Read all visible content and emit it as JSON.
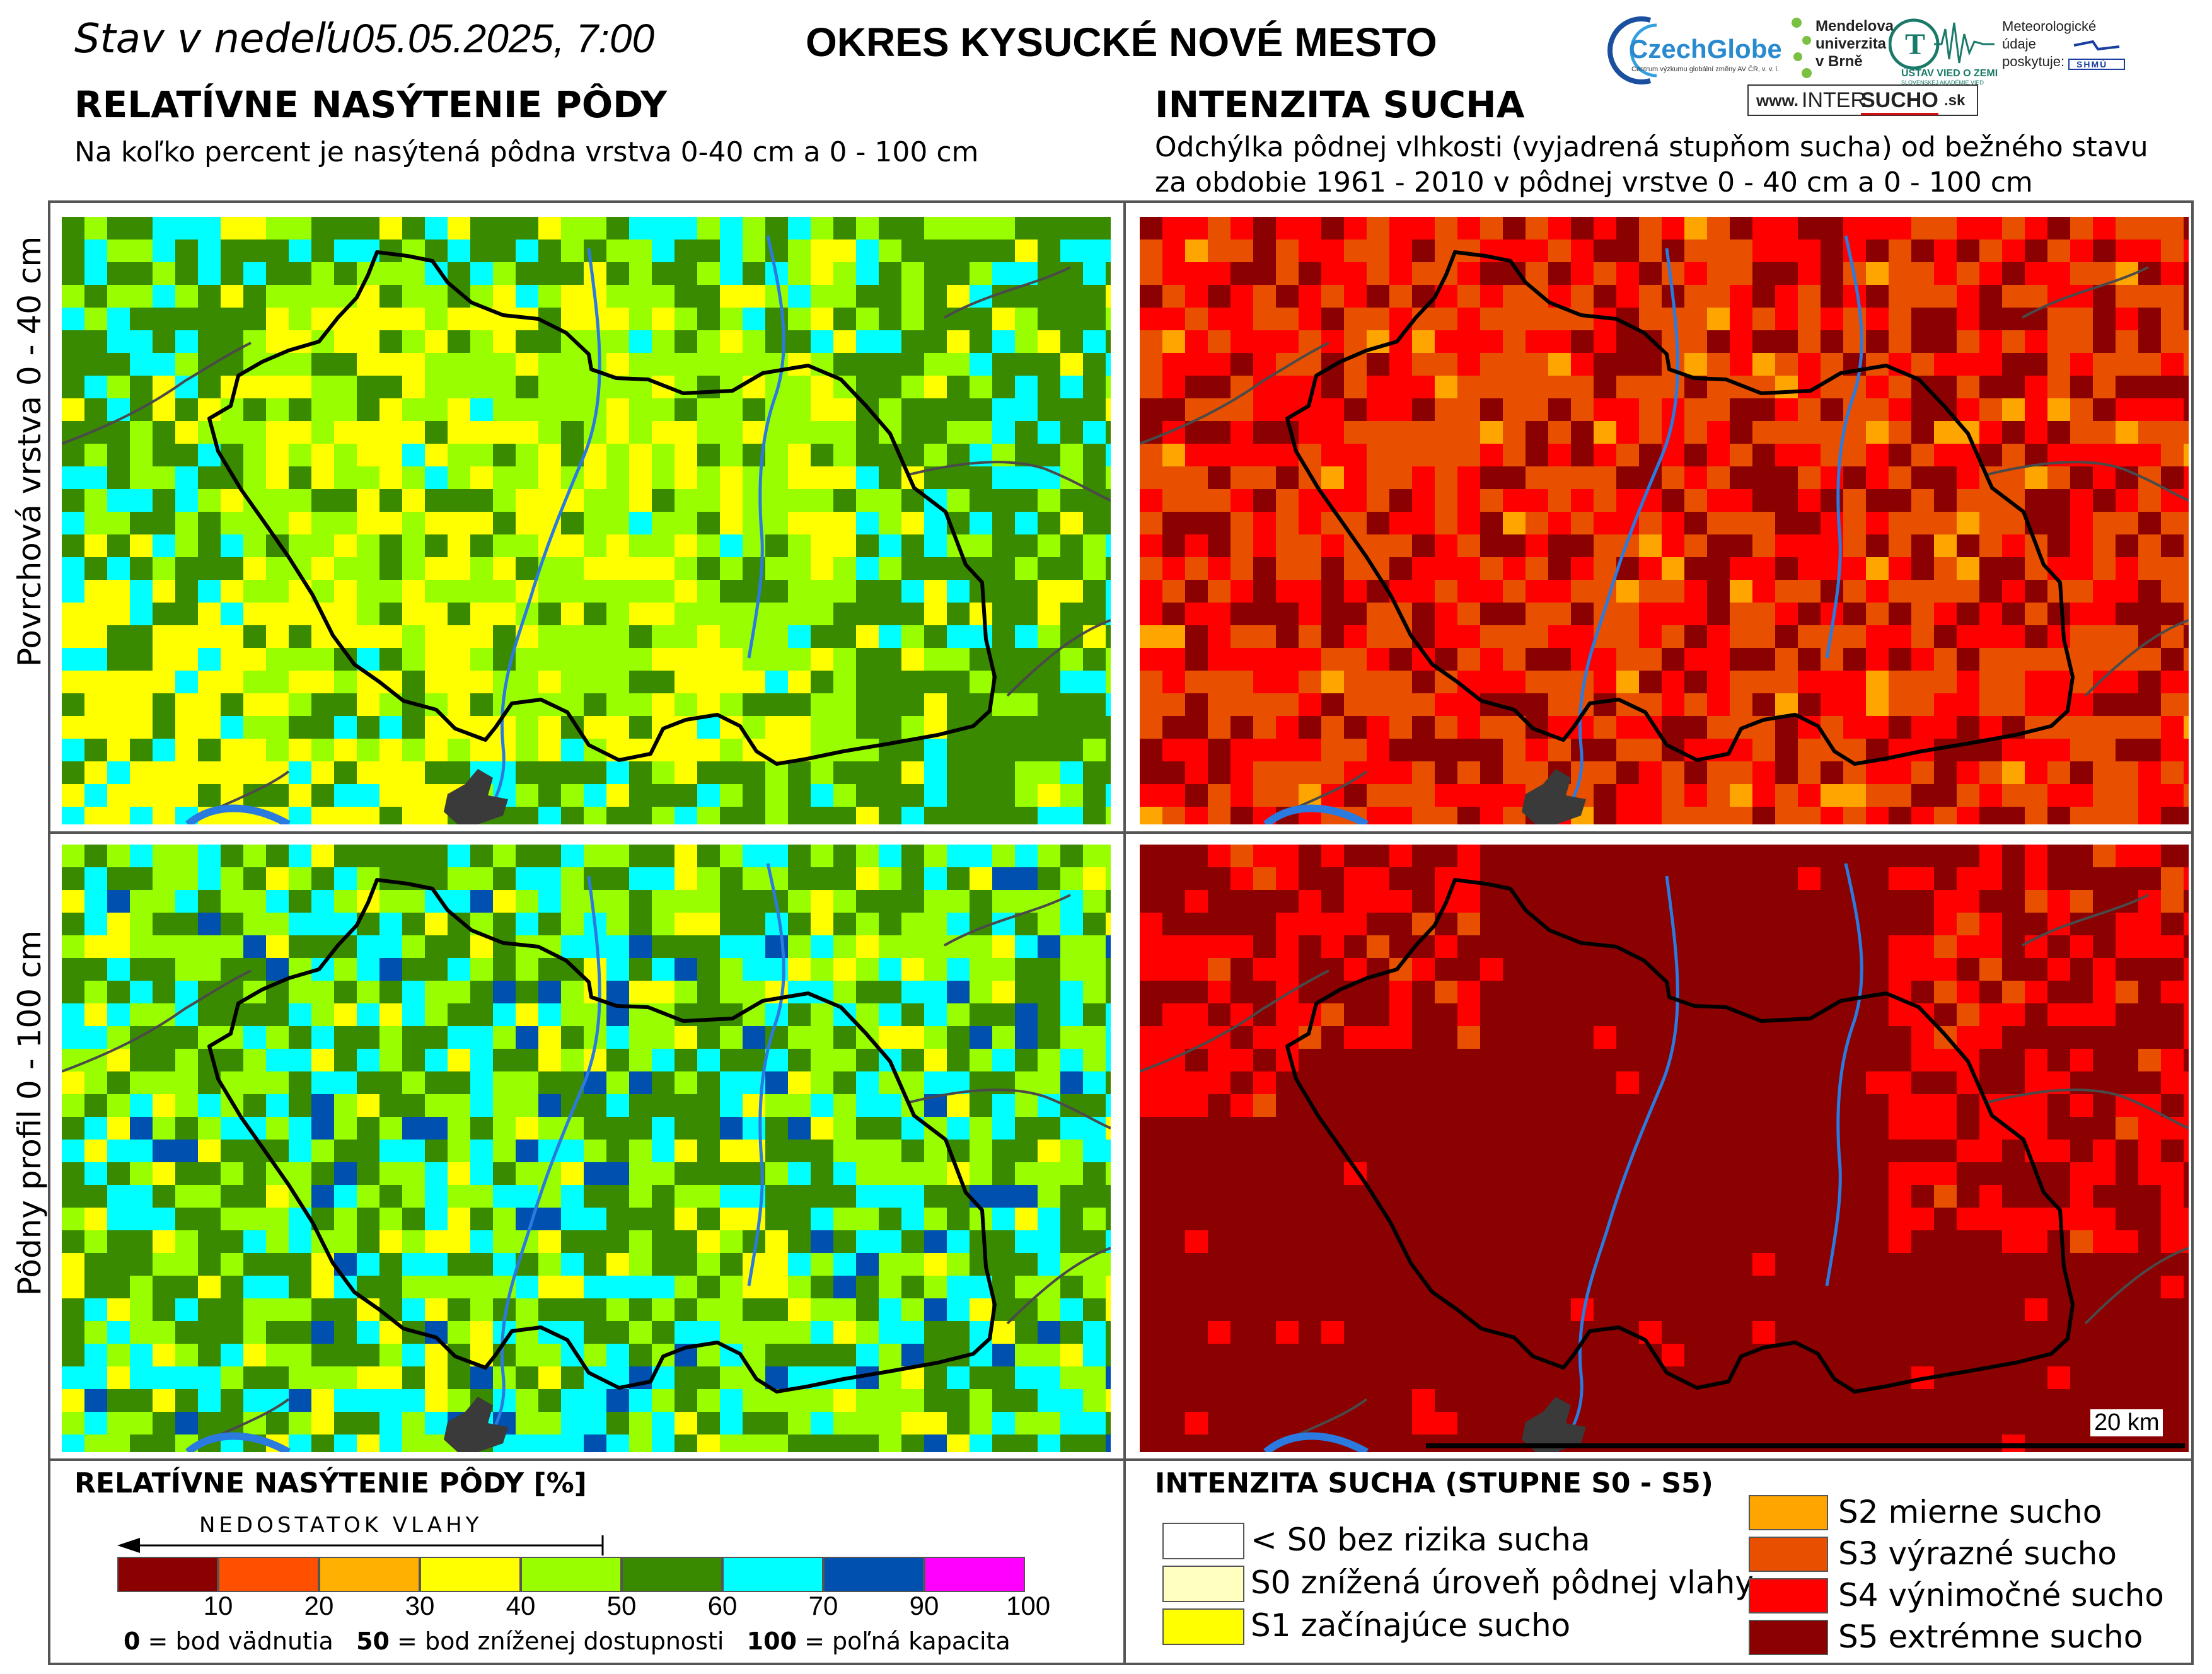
{
  "header": {
    "date_prefix": "Stav v nedeľu",
    "date": "05.05.2025, 7:00",
    "district": "OKRES  KYSUCKÉ NOVÉ MESTO"
  },
  "left_panel": {
    "title": "RELATÍVNE NASÝTENIE PÔDY",
    "subtitle": "Na koľko percent je nasýtená pôdna vrstva 0-40 cm a 0 - 100 cm"
  },
  "right_panel": {
    "title": "INTENZITA SUCHA",
    "subtitle_line1": "Odchýlka pôdnej vlhkosti (vyjadrená stupňom sucha) od bežného stavu",
    "subtitle_line2": "za obdobie 1961 - 2010 v pôdnej vrstve 0 - 40 cm a 0 - 100 cm"
  },
  "logos": {
    "czechglobe": "CzechGlobe",
    "czechglobe_sub": "Centrum výzkumu globální změny AV ČR, v. v. i.",
    "mendel_1": "Mendelova",
    "mendel_2": "univerzita",
    "mendel_3": "v Brně",
    "uvz": "ÚSTAV VIED O ZEMI",
    "uvz_sub": "SLOVENSKEJ AKADÉMIE VIED",
    "meteo_1": "Meteorologické",
    "meteo_2": "údaje",
    "meteo_3": "poskytuje:",
    "shmu": "SHMÚ",
    "intersucho_www": "www.",
    "intersucho_a": "INTER",
    "intersucho_b": "SUCHO",
    "intersucho_c": ".sk"
  },
  "row_labels": {
    "top": "Povrchová vrstva 0 - 40 cm",
    "bottom": "Pôdny profil 0 - 100 cm"
  },
  "scalebar": {
    "label": "20 km"
  },
  "legend_saturation": {
    "title": "RELATÍVNE NASÝTENIE PÔDY [%]",
    "arrow_label": "NEDOSTATOK VLAHY",
    "colors": [
      "#8B0000",
      "#FF5000",
      "#FFB000",
      "#FFFF00",
      "#99FF00",
      "#3A8A00",
      "#00FFFF",
      "#0050B0",
      "#FF00FF"
    ],
    "ticks": [
      "10",
      "20",
      "30",
      "40",
      "50",
      "60",
      "70",
      "90",
      "100"
    ],
    "note_0_num": "0",
    "note_0_txt": " = bod vädnutia",
    "note_50_num": "50",
    "note_50_txt": " = bod zníženej dostupnosti",
    "note_100_num": "100",
    "note_100_txt": " = poľná kapacita"
  },
  "legend_drought": {
    "title": "INTENZITA SUCHA (STUPNE S0 - S5)",
    "items": [
      {
        "label": "< S0 bez rizika sucha",
        "color": "#FFFFFF"
      },
      {
        "label": "S0 znížená úroveň pôdnej vlahy",
        "color": "#FFFFC0"
      },
      {
        "label": "S1 začínajúce sucho",
        "color": "#FFFF00"
      },
      {
        "label": "S2 mierne sucho",
        "color": "#FFA500"
      },
      {
        "label": "S3 výrazné sucho",
        "color": "#E85000"
      },
      {
        "label": "S4 výnimočné sucho",
        "color": "#FF0000"
      },
      {
        "label": "S5 extrémne sucho",
        "color": "#8B0000"
      }
    ]
  }
}
